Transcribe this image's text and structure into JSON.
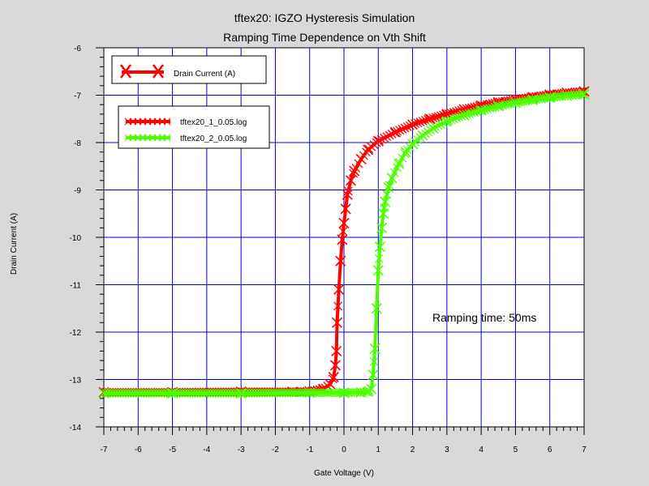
{
  "chart_data": {
    "type": "line",
    "title": "tftex20: IGZO Hysteresis Simulation",
    "subtitle": "Ramping Time Dependence on Vth Shift",
    "xlabel": "Gate Voltage (V)",
    "ylabel": "Drain Current (A)",
    "xlim": [
      -7,
      7
    ],
    "ylim": [
      -14,
      -6
    ],
    "xticks": [
      "-7",
      "-6",
      "-5",
      "-4",
      "-3",
      "-2",
      "-1",
      "0",
      "1",
      "2",
      "3",
      "4",
      "5",
      "6",
      "7"
    ],
    "yticks": [
      "-6",
      "-7",
      "-8",
      "-9",
      "-10",
      "-11",
      "-12",
      "-13",
      "-14"
    ],
    "grid": true,
    "annotation": "Ramping time: 50ms",
    "legend_quantity": {
      "label": "Drain Current (A)",
      "color": "#ff0000",
      "position": "top-left"
    },
    "legend_files": {
      "position": "top-left",
      "entries": [
        {
          "label": "tftex20_1_0.05.log",
          "color": "#ff0000"
        },
        {
          "label": "tftex20_2_0.05.log",
          "color": "#4cff00"
        }
      ]
    },
    "series": [
      {
        "name": "tftex20_1_0.05.log",
        "color": "#ff0000",
        "x": [
          -7,
          -5,
          -3,
          -1.5,
          -1,
          -0.6,
          -0.4,
          -0.3,
          -0.25,
          -0.22,
          -0.2,
          -0.15,
          -0.1,
          -0.05,
          0,
          0.05,
          0.1,
          0.2,
          0.3,
          0.5,
          0.7,
          1,
          1.5,
          2,
          2.5,
          3,
          3.5,
          4,
          4.5,
          5,
          5.5,
          6,
          6.5,
          7
        ],
        "y": [
          -13.27,
          -13.27,
          -13.26,
          -13.26,
          -13.25,
          -13.2,
          -13.1,
          -12.95,
          -12.7,
          -12.4,
          -11.8,
          -11.1,
          -10.5,
          -10.05,
          -9.7,
          -9.4,
          -9.1,
          -8.8,
          -8.6,
          -8.35,
          -8.15,
          -7.97,
          -7.78,
          -7.62,
          -7.5,
          -7.4,
          -7.3,
          -7.22,
          -7.15,
          -7.09,
          -7.04,
          -6.99,
          -6.95,
          -6.92
        ]
      },
      {
        "name": "tftex20_2_0.05.log",
        "color": "#4cff00",
        "x": [
          -7,
          -5,
          -3,
          -1,
          0,
          0.5,
          0.7,
          0.8,
          0.85,
          0.9,
          0.95,
          1,
          1.05,
          1.1,
          1.15,
          1.2,
          1.3,
          1.4,
          1.6,
          1.8,
          2,
          2.3,
          2.6,
          3,
          3.5,
          4,
          4.5,
          5,
          5.5,
          6,
          6.5,
          7
        ],
        "y": [
          -13.29,
          -13.29,
          -13.29,
          -13.28,
          -13.28,
          -13.27,
          -13.26,
          -13.2,
          -12.9,
          -12.35,
          -11.5,
          -10.7,
          -10.2,
          -9.8,
          -9.5,
          -9.25,
          -8.95,
          -8.75,
          -8.45,
          -8.2,
          -8.03,
          -7.85,
          -7.7,
          -7.55,
          -7.42,
          -7.32,
          -7.23,
          -7.16,
          -7.1,
          -7.05,
          -7.01,
          -6.98
        ]
      }
    ]
  }
}
